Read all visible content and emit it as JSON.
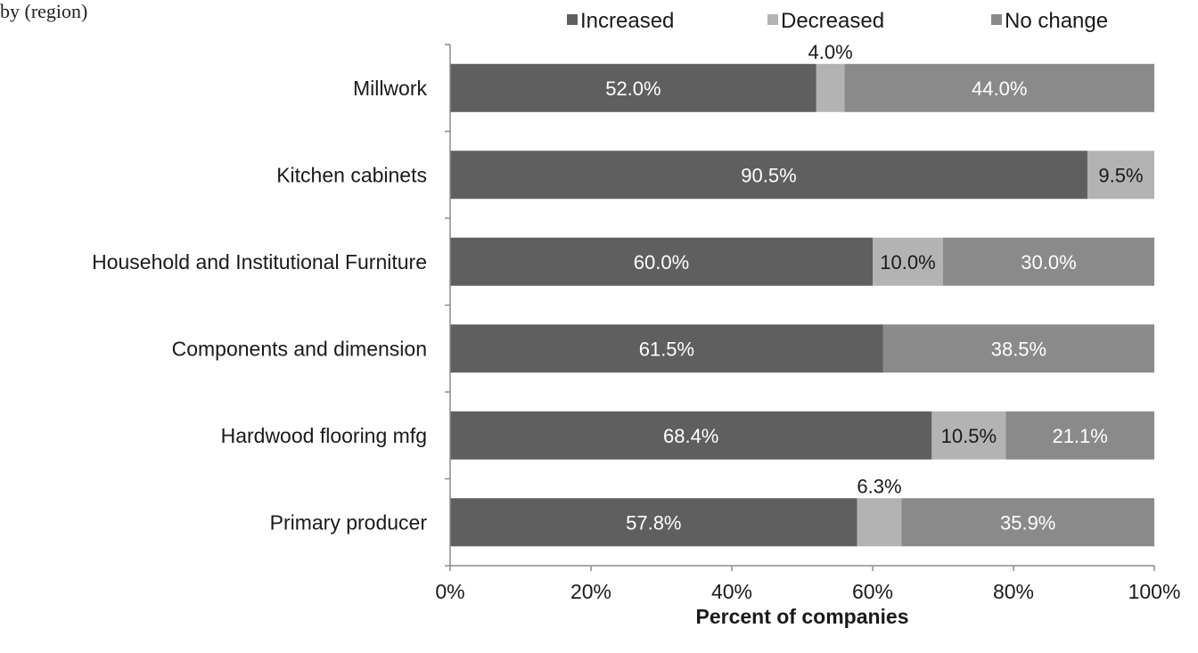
{
  "header": {
    "cropped_title": "by (region)"
  },
  "colors": {
    "increased": "#5f5f5f",
    "decreased": "#b3b3b3",
    "no_change": "#8a8a8a",
    "axis": "#8c8c8c"
  },
  "chart_data": {
    "type": "bar",
    "orientation": "horizontal",
    "stacked": true,
    "categories": [
      "Millwork",
      "Kitchen cabinets",
      "Household and Institutional Furniture",
      "Components and dimension",
      "Hardwood flooring mfg",
      "Primary producer"
    ],
    "series": [
      {
        "name": "Increased",
        "values": [
          52.0,
          90.5,
          60.0,
          61.5,
          68.4,
          57.8
        ]
      },
      {
        "name": "Decreased",
        "values": [
          4.0,
          9.5,
          10.0,
          0,
          10.5,
          6.3
        ]
      },
      {
        "name": "No change",
        "values": [
          44.0,
          0,
          30.0,
          38.5,
          21.1,
          35.9
        ]
      }
    ],
    "data_labels": [
      [
        "52.0%",
        "4.0%",
        "44.0%"
      ],
      [
        "90.5%",
        "9.5%",
        ""
      ],
      [
        "60.0%",
        "10.0%",
        "30.0%"
      ],
      [
        "61.5%",
        "",
        "38.5%"
      ],
      [
        "68.4%",
        "10.5%",
        "21.1%"
      ],
      [
        "57.8%",
        "6.3%",
        "35.9%"
      ]
    ],
    "xlabel": "Percent of companies",
    "ylabel": "",
    "xlim": [
      0,
      100
    ],
    "xticks": [
      "0%",
      "20%",
      "40%",
      "60%",
      "80%",
      "100%"
    ],
    "legend": {
      "position": "top-right",
      "entries": [
        "Increased",
        "Decreased",
        "No change"
      ]
    },
    "grid": false
  }
}
